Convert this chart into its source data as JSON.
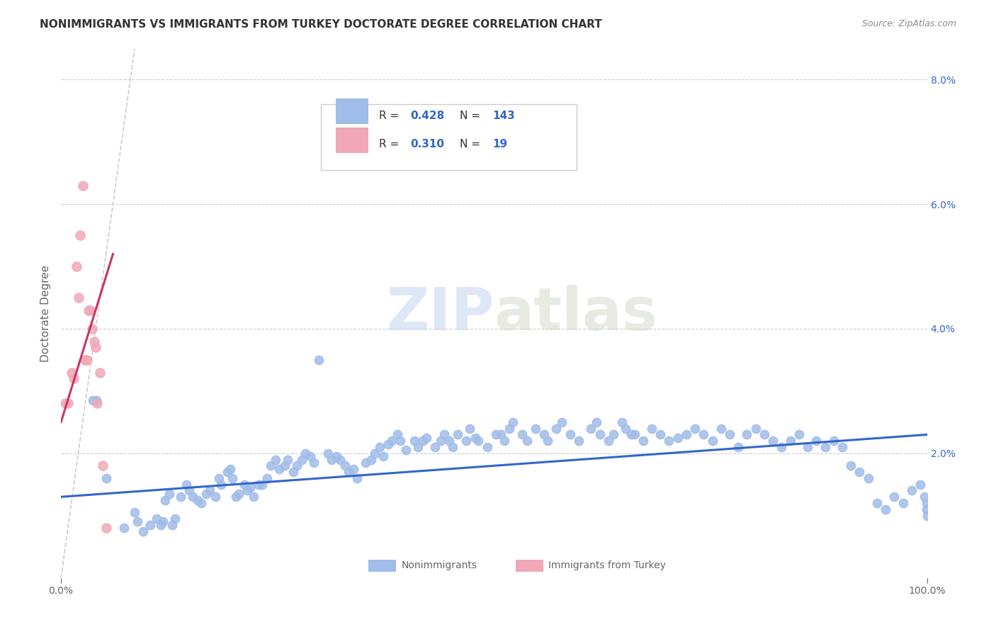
{
  "title": "NONIMMIGRANTS VS IMMIGRANTS FROM TURKEY DOCTORATE DEGREE CORRELATION CHART",
  "source": "Source: ZipAtlas.com",
  "ylabel": "Doctorate Degree",
  "xlim": [
    0,
    1.0
  ],
  "ylim": [
    0,
    0.085
  ],
  "yticks_right": [
    0.0,
    0.02,
    0.04,
    0.06,
    0.08
  ],
  "yticklabels_right": [
    "",
    "2.0%",
    "4.0%",
    "6.0%",
    "8.0%"
  ],
  "legend_r_blue": "0.428",
  "legend_n_blue": "143",
  "legend_r_pink": "0.310",
  "legend_n_pink": "19",
  "watermark_zip": "ZIP",
  "watermark_atlas": "atlas",
  "blue_line_color": "#3366cc",
  "pink_line_color": "#cc3366",
  "blue_scatter_color": "#a0bce8",
  "pink_scatter_color": "#f0a8b8",
  "title_color": "#333333",
  "axis_color": "#666666",
  "grid_color": "#cccccc",
  "blue_text_color": "#3366cc",
  "blue_x": [
    0.037,
    0.041,
    0.052,
    0.073,
    0.085,
    0.088,
    0.095,
    0.103,
    0.11,
    0.115,
    0.118,
    0.12,
    0.125,
    0.128,
    0.132,
    0.138,
    0.145,
    0.148,
    0.152,
    0.158,
    0.162,
    0.168,
    0.172,
    0.178,
    0.182,
    0.185,
    0.192,
    0.195,
    0.198,
    0.202,
    0.205,
    0.212,
    0.215,
    0.218,
    0.222,
    0.228,
    0.232,
    0.238,
    0.242,
    0.248,
    0.252,
    0.258,
    0.262,
    0.268,
    0.272,
    0.278,
    0.282,
    0.288,
    0.292,
    0.298,
    0.308,
    0.312,
    0.318,
    0.322,
    0.328,
    0.332,
    0.338,
    0.342,
    0.352,
    0.358,
    0.362,
    0.368,
    0.372,
    0.378,
    0.382,
    0.388,
    0.392,
    0.398,
    0.408,
    0.412,
    0.418,
    0.422,
    0.432,
    0.438,
    0.442,
    0.448,
    0.452,
    0.458,
    0.468,
    0.472,
    0.478,
    0.482,
    0.492,
    0.502,
    0.508,
    0.512,
    0.518,
    0.522,
    0.532,
    0.538,
    0.548,
    0.558,
    0.562,
    0.572,
    0.578,
    0.588,
    0.598,
    0.612,
    0.618,
    0.622,
    0.632,
    0.638,
    0.648,
    0.652,
    0.658,
    0.662,
    0.672,
    0.682,
    0.692,
    0.702,
    0.712,
    0.722,
    0.732,
    0.742,
    0.752,
    0.762,
    0.772,
    0.782,
    0.792,
    0.802,
    0.812,
    0.822,
    0.832,
    0.842,
    0.852,
    0.862,
    0.872,
    0.882,
    0.892,
    0.902,
    0.912,
    0.922,
    0.932,
    0.942,
    0.952,
    0.962,
    0.972,
    0.982,
    0.992,
    0.997,
    0.999,
    0.9995,
    0.9999
  ],
  "blue_y": [
    0.0285,
    0.0285,
    0.016,
    0.008,
    0.0105,
    0.009,
    0.0075,
    0.0085,
    0.0095,
    0.0085,
    0.009,
    0.0125,
    0.0135,
    0.0085,
    0.0095,
    0.013,
    0.015,
    0.014,
    0.013,
    0.0125,
    0.012,
    0.0135,
    0.014,
    0.013,
    0.016,
    0.015,
    0.017,
    0.0175,
    0.016,
    0.013,
    0.0135,
    0.015,
    0.014,
    0.0145,
    0.013,
    0.015,
    0.015,
    0.016,
    0.018,
    0.019,
    0.0175,
    0.018,
    0.019,
    0.017,
    0.018,
    0.019,
    0.02,
    0.0195,
    0.0185,
    0.035,
    0.02,
    0.019,
    0.0195,
    0.019,
    0.018,
    0.017,
    0.0175,
    0.016,
    0.0185,
    0.019,
    0.02,
    0.021,
    0.0195,
    0.0215,
    0.022,
    0.023,
    0.022,
    0.0205,
    0.022,
    0.021,
    0.022,
    0.0225,
    0.021,
    0.022,
    0.023,
    0.022,
    0.021,
    0.023,
    0.022,
    0.024,
    0.0225,
    0.022,
    0.021,
    0.023,
    0.023,
    0.022,
    0.024,
    0.025,
    0.023,
    0.022,
    0.024,
    0.023,
    0.022,
    0.024,
    0.025,
    0.023,
    0.022,
    0.024,
    0.025,
    0.023,
    0.022,
    0.023,
    0.025,
    0.024,
    0.023,
    0.023,
    0.022,
    0.024,
    0.023,
    0.022,
    0.0225,
    0.023,
    0.024,
    0.023,
    0.022,
    0.024,
    0.023,
    0.021,
    0.023,
    0.024,
    0.023,
    0.022,
    0.021,
    0.022,
    0.023,
    0.021,
    0.022,
    0.021,
    0.022,
    0.021,
    0.018,
    0.017,
    0.016,
    0.012,
    0.011,
    0.013,
    0.012,
    0.014,
    0.015,
    0.013,
    0.012,
    0.011,
    0.01
  ],
  "pink_x": [
    0.005,
    0.008,
    0.012,
    0.015,
    0.018,
    0.02,
    0.022,
    0.025,
    0.028,
    0.03,
    0.032,
    0.034,
    0.036,
    0.038,
    0.04,
    0.042,
    0.045,
    0.048,
    0.052
  ],
  "pink_y": [
    0.028,
    0.028,
    0.033,
    0.032,
    0.05,
    0.045,
    0.055,
    0.063,
    0.035,
    0.035,
    0.043,
    0.043,
    0.04,
    0.038,
    0.037,
    0.028,
    0.033,
    0.018,
    0.008
  ],
  "blue_trend_x": [
    0.0,
    1.0
  ],
  "blue_trend_y": [
    0.013,
    0.023
  ],
  "pink_trend_x": [
    0.0,
    0.06
  ],
  "pink_trend_y": [
    0.025,
    0.052
  ],
  "ref_line_x": [
    0.0,
    0.085
  ],
  "ref_line_y": [
    0.0,
    0.085
  ]
}
